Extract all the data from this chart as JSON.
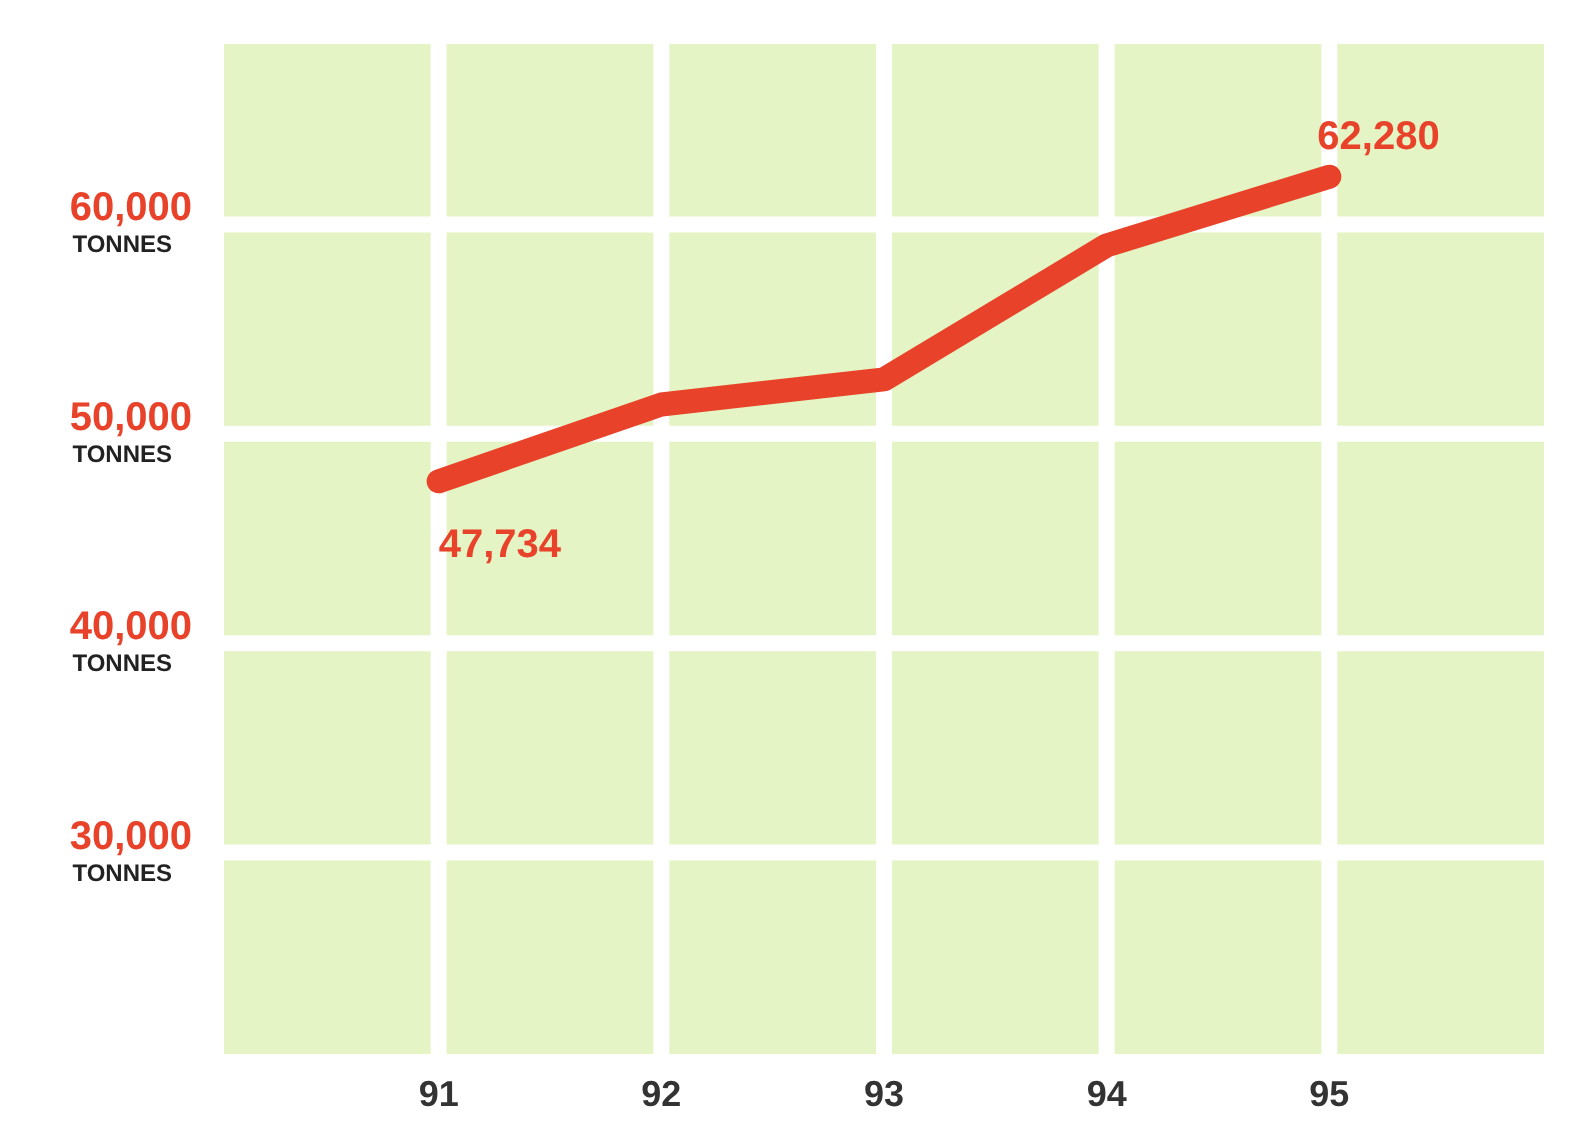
{
  "chart_data": {
    "type": "line",
    "x": [
      91,
      92,
      93,
      94,
      95
    ],
    "series": [
      {
        "color": "#e8432a",
        "values": [
          47734,
          51400,
          52600,
          59000,
          62280
        ],
        "value_labels": [
          "47,734",
          null,
          null,
          null,
          "62,280"
        ]
      }
    ],
    "xlim": [
      90,
      96
    ],
    "xticks": [
      91,
      92,
      93,
      94,
      95
    ],
    "ylim": [
      20000,
      69000
    ],
    "yticks": [
      {
        "value": 30000,
        "label": "30,000 TONNES"
      },
      {
        "value": 40000,
        "label": "40,000 TONNES"
      },
      {
        "value": 50000,
        "label": "50,000 TONNES"
      },
      {
        "value": 60000,
        "label": "60,000 TONNES"
      }
    ],
    "grid": true,
    "legend": false,
    "marker": "none",
    "line_style": "solid"
  }
}
